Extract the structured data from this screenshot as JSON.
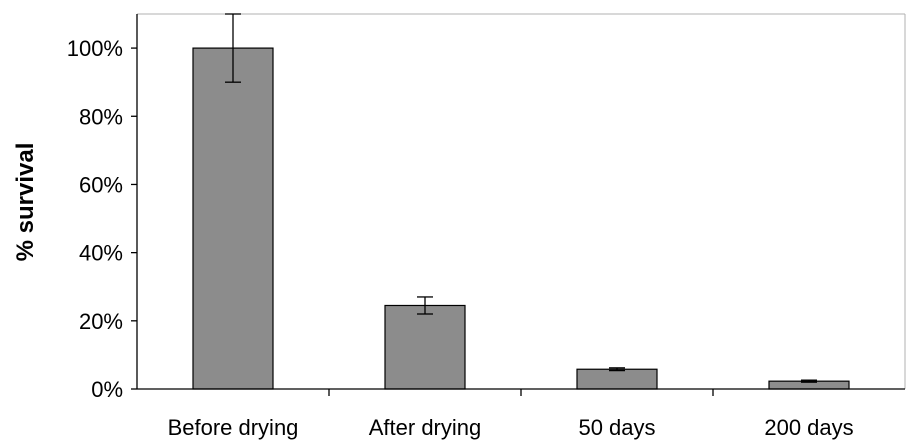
{
  "chart_data": {
    "type": "bar",
    "title": "",
    "xlabel": "",
    "ylabel": "% survival",
    "categories": [
      "Before drying",
      "After drying",
      "50 days",
      "200 days"
    ],
    "values": [
      100,
      24.5,
      5.8,
      2.3
    ],
    "error_bars": [
      10,
      2.5,
      0.4,
      0.3
    ],
    "ylim": [
      0,
      110
    ],
    "y_ticks": [
      0,
      20,
      40,
      60,
      80,
      100
    ],
    "y_tick_labels": [
      "0%",
      "20%",
      "40%",
      "60%",
      "80%",
      "100%"
    ],
    "grid": false,
    "legend": "none",
    "colors": {
      "bar_fill": "#8c8c8c",
      "bar_stroke": "#000000",
      "axis": "#000000"
    }
  }
}
